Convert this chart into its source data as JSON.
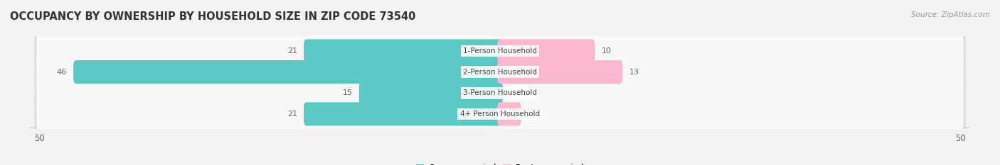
{
  "title": "OCCUPANCY BY OWNERSHIP BY HOUSEHOLD SIZE IN ZIP CODE 73540",
  "source": "Source: ZipAtlas.com",
  "categories": [
    "1-Person Household",
    "2-Person Household",
    "3-Person Household",
    "4+ Person Household"
  ],
  "owner_values": [
    21,
    46,
    15,
    21
  ],
  "renter_values": [
    10,
    13,
    0,
    2
  ],
  "owner_color": "#5BC8C4",
  "renter_color": "#F47FAE",
  "renter_color_light": "#F9B8D0",
  "background_color": "#F2F2F2",
  "row_bg_color": "#FFFFFF",
  "row_bg_outer": "#E0E0E0",
  "axis_max": 50,
  "label_color": "#666666",
  "title_fontsize": 10.5,
  "source_fontsize": 7.5,
  "tick_fontsize": 8.5,
  "bar_label_fontsize": 8,
  "category_fontsize": 7.5,
  "legend_fontsize": 8.5
}
